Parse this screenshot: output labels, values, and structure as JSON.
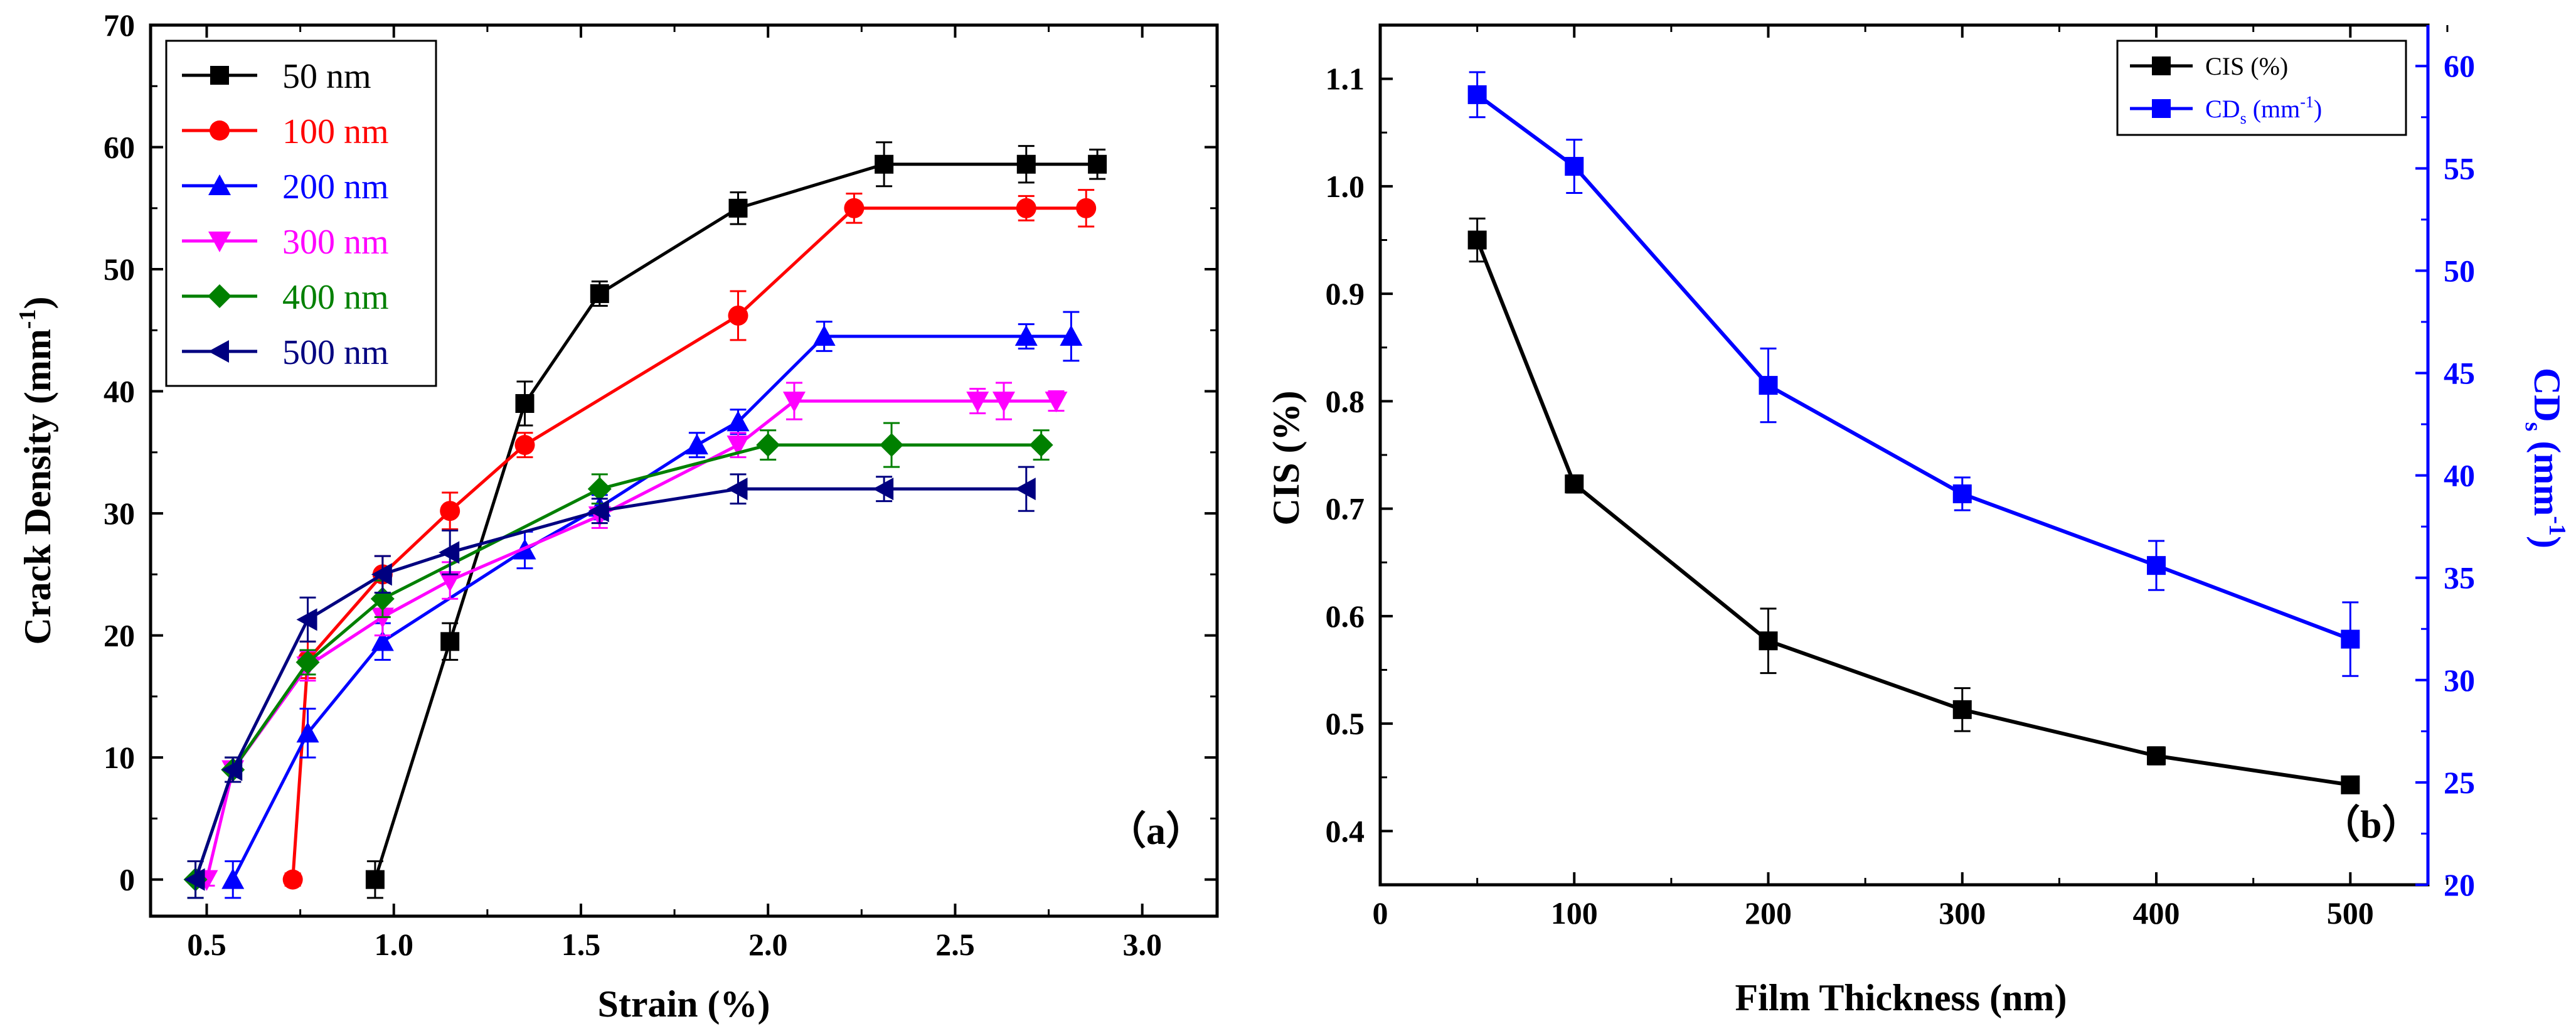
{
  "chart_data": [
    {
      "type": "line",
      "panel_label": "（a）",
      "xlabel": "Strain (%)",
      "ylabel": "Crack Density (mm",
      "ylabel_sup": "-1",
      "ylabel_tail": ")",
      "xlim": [
        0.35,
        3.2
      ],
      "ylim": [
        -3,
        70
      ],
      "xticks": [
        0.5,
        1.0,
        1.5,
        2.0,
        2.5,
        3.0
      ],
      "xtick_labels": [
        "0.5",
        "1.0",
        "1.5",
        "2.0",
        "2.5",
        "3.0"
      ],
      "yticks": [
        0,
        10,
        20,
        30,
        40,
        50,
        60,
        70
      ],
      "ytick_labels": [
        "0",
        "10",
        "20",
        "30",
        "40",
        "50",
        "60",
        "70"
      ],
      "legend_position": "top-left",
      "series": [
        {
          "name": "50 nm",
          "color": "#000000",
          "marker": "square",
          "x": [
            0.95,
            1.15,
            1.35,
            1.55,
            1.92,
            2.31,
            2.69,
            2.88
          ],
          "y": [
            0,
            19.5,
            39,
            48,
            55,
            58.6,
            58.6,
            58.6
          ],
          "err": [
            1.5,
            1.5,
            1.8,
            1,
            1.3,
            1.8,
            1.5,
            1.2
          ]
        },
        {
          "name": "100 nm",
          "color": "#ff0000",
          "marker": "circle",
          "x": [
            0.73,
            0.77,
            0.97,
            1.15,
            1.35,
            1.92,
            2.23,
            2.69,
            2.85
          ],
          "y": [
            0,
            18,
            25,
            30.2,
            35.6,
            46.2,
            55,
            55,
            55
          ],
          "err": [
            0.5,
            1.5,
            1.5,
            1.5,
            1,
            2,
            1.2,
            1,
            1.5
          ]
        },
        {
          "name": "200 nm",
          "color": "#0000ff",
          "marker": "triangle-up",
          "x": [
            0.57,
            0.77,
            0.97,
            1.35,
            1.55,
            1.81,
            1.92,
            2.15,
            2.69,
            2.81
          ],
          "y": [
            0,
            12,
            19.5,
            27,
            30.5,
            35.6,
            37.5,
            44.5,
            44.5,
            44.5
          ],
          "err": [
            1.5,
            2,
            1.5,
            1.5,
            1,
            1,
            1,
            1.2,
            1,
            2
          ]
        },
        {
          "name": "300 nm",
          "color": "#ff00ff",
          "marker": "triangle-down",
          "x": [
            0.5,
            0.57,
            0.77,
            0.97,
            1.15,
            1.55,
            1.92,
            2.07,
            2.56,
            2.63,
            2.77
          ],
          "y": [
            0,
            9,
            17.5,
            21.5,
            24.5,
            29.8,
            35.6,
            39.2,
            39.2,
            39.2,
            39.2
          ],
          "err": [
            0.5,
            1,
            1.2,
            1.5,
            1.5,
            1,
            1,
            1.5,
            1,
            1.5,
            0.8
          ]
        },
        {
          "name": "400 nm",
          "color": "#008000",
          "marker": "diamond",
          "x": [
            0.47,
            0.57,
            0.77,
            0.97,
            1.55,
            2.0,
            2.33,
            2.73
          ],
          "y": [
            0,
            9,
            17.8,
            23,
            32,
            35.6,
            35.6,
            35.6
          ],
          "err": [
            1.5,
            1,
            1,
            1.5,
            1.2,
            1.2,
            1.8,
            1.2
          ]
        },
        {
          "name": "500 nm",
          "color": "#000080",
          "marker": "triangle-left",
          "x": [
            0.47,
            0.57,
            0.77,
            0.97,
            1.15,
            1.55,
            1.92,
            2.31,
            2.69
          ],
          "y": [
            0,
            9,
            21.3,
            25,
            26.8,
            30.2,
            32,
            32,
            32
          ],
          "err": [
            1.5,
            1,
            1.8,
            1.5,
            1.8,
            1,
            1.2,
            1,
            1.8
          ]
        }
      ]
    },
    {
      "type": "line",
      "panel_label": "（b）",
      "xlabel": "Film Thickness (nm)",
      "ylabel_left": "CIS (%)",
      "ylabel_right": "CD",
      "ylabel_right_sub": "s",
      "ylabel_right_tail": " (mm",
      "ylabel_right_sup": "-1",
      "ylabel_right_tail2": ")",
      "xlim": [
        0,
        540
      ],
      "ylim_left": [
        0.35,
        1.15
      ],
      "ylim_right": [
        20,
        62
      ],
      "xticks": [
        0,
        100,
        200,
        300,
        400,
        500
      ],
      "xtick_labels": [
        "0",
        "100",
        "200",
        "300",
        "400",
        "500"
      ],
      "yticks_left": [
        0.4,
        0.5,
        0.6,
        0.7,
        0.8,
        0.9,
        1.0,
        1.1
      ],
      "ytick_labels_left": [
        "0.4",
        "0.5",
        "0.6",
        "0.7",
        "0.8",
        "0.9",
        "1.0",
        "1.1"
      ],
      "yticks_right": [
        20,
        25,
        30,
        35,
        40,
        45,
        50,
        55,
        60
      ],
      "ytick_labels_right": [
        "20",
        "25",
        "30",
        "35",
        "40",
        "45",
        "50",
        "55",
        "60"
      ],
      "legend_position": "top-right",
      "series": [
        {
          "name": "CIS (%)",
          "color": "#000000",
          "axis": "left",
          "marker": "square",
          "x": [
            50,
            100,
            200,
            300,
            400,
            500
          ],
          "y": [
            0.95,
            0.723,
            0.577,
            0.513,
            0.47,
            0.443
          ],
          "err": [
            0.02,
            0.008,
            0.03,
            0.02,
            0.008,
            0.007
          ]
        },
        {
          "name": "CD",
          "name_sub": "s",
          "name_tail": " (mm",
          "name_sup": "-1",
          "name_tail2": ")",
          "color": "#0000ff",
          "axis": "right",
          "marker": "square",
          "x": [
            50,
            100,
            200,
            300,
            400,
            500
          ],
          "y": [
            58.6,
            55.1,
            44.4,
            39.1,
            35.6,
            32
          ],
          "err": [
            1.1,
            1.3,
            1.8,
            0.8,
            1.2,
            1.8
          ]
        }
      ]
    }
  ]
}
